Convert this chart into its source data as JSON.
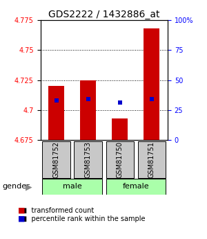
{
  "title": "GDS2222 / 1432886_at",
  "samples": [
    "GSM81752",
    "GSM81753",
    "GSM81750",
    "GSM81751"
  ],
  "gender_groups": [
    [
      "male",
      "male"
    ],
    [
      "female",
      "female"
    ]
  ],
  "gender_labels": [
    "male",
    "female"
  ],
  "ylim": [
    4.675,
    4.775
  ],
  "yticks": [
    4.675,
    4.7,
    4.725,
    4.75,
    4.775
  ],
  "ytick_labels": [
    "4.675",
    "4.7",
    "4.725",
    "4.75",
    "4.775"
  ],
  "right_yticks_pct": [
    0,
    25,
    50,
    75,
    100
  ],
  "right_ytick_labels": [
    "0",
    "25",
    "50",
    "75",
    "100%"
  ],
  "bar_tops": [
    4.72,
    4.725,
    4.693,
    4.768
  ],
  "bar_bottom": 4.675,
  "percentile_values": [
    4.708,
    4.709,
    4.706,
    4.709
  ],
  "bar_color": "#CC0000",
  "percentile_color": "#0000CC",
  "label_box_color": "#C8C8C8",
  "gender_box_color": "#AAFFAA",
  "title_fontsize": 10,
  "tick_fontsize": 7,
  "label_fontsize": 7,
  "legend_fontsize": 7,
  "grid_lines": [
    4.7,
    4.725,
    4.75
  ]
}
